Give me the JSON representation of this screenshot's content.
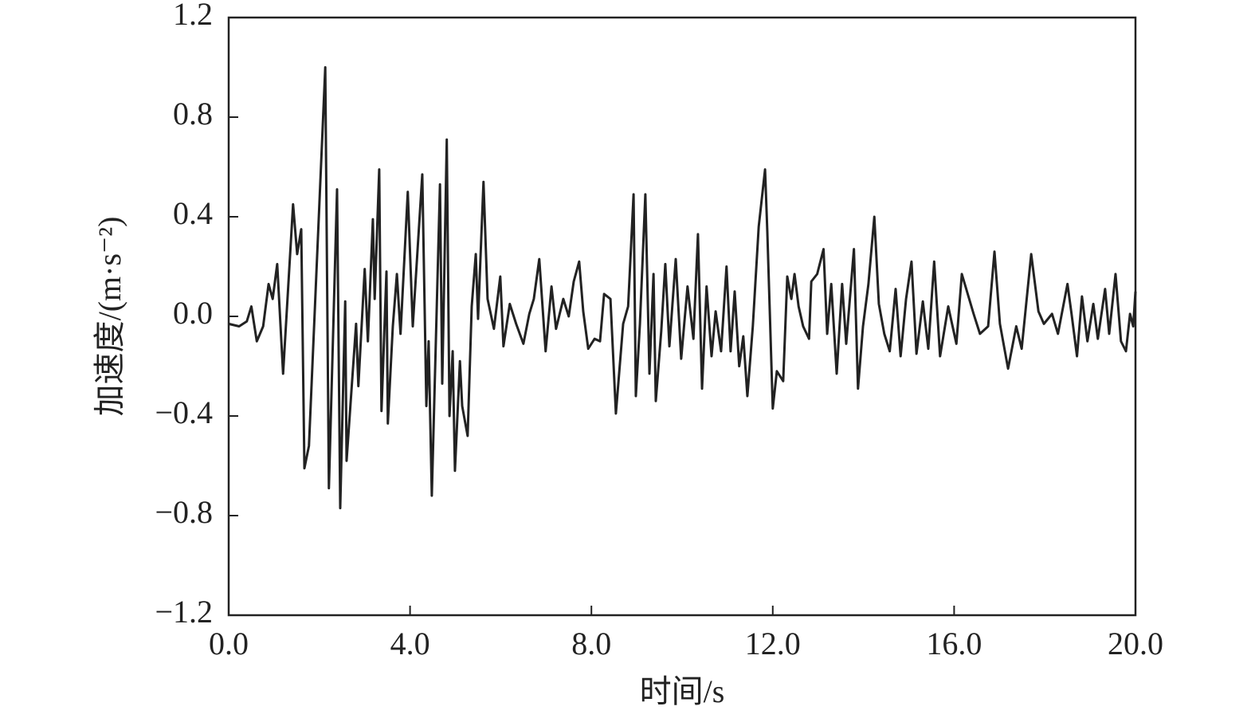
{
  "chart_data": {
    "type": "line",
    "x_label": "时间/s",
    "y_label": "加速度/(m·s⁻²)",
    "xlim": [
      0,
      20
    ],
    "ylim": [
      -1.2,
      1.2
    ],
    "xticks": [
      {
        "value": 0,
        "label": "0.0"
      },
      {
        "value": 4,
        "label": "4.0"
      },
      {
        "value": 8,
        "label": "8.0"
      },
      {
        "value": 12,
        "label": "12.0"
      },
      {
        "value": 16,
        "label": "16.0"
      },
      {
        "value": 20,
        "label": "20.0"
      }
    ],
    "yticks": [
      {
        "value": -1.2,
        "label": "−1.2"
      },
      {
        "value": -0.8,
        "label": "−0.8"
      },
      {
        "value": -0.4,
        "label": "−0.4"
      },
      {
        "value": 0,
        "label": "0.0"
      },
      {
        "value": 0.4,
        "label": "0.4"
      },
      {
        "value": 0.8,
        "label": "0.8"
      },
      {
        "value": 1.2,
        "label": "1.2"
      }
    ],
    "x": [
      0,
      0.23,
      0.4,
      0.5,
      0.62,
      0.76,
      0.88,
      0.97,
      1.07,
      1.2,
      1.42,
      1.51,
      1.6,
      1.67,
      1.77,
      2.13,
      2.21,
      2.39,
      2.46,
      2.57,
      2.6,
      2.81,
      2.86,
      3.0,
      3.07,
      3.18,
      3.22,
      3.32,
      3.37,
      3.48,
      3.51,
      3.62,
      3.71,
      3.79,
      3.95,
      4.06,
      4.27,
      4.36,
      4.41,
      4.48,
      4.66,
      4.71,
      4.81,
      4.87,
      4.94,
      4.99,
      5.1,
      5.15,
      5.27,
      5.36,
      5.45,
      5.5,
      5.62,
      5.71,
      5.85,
      5.99,
      6.06,
      6.2,
      6.34,
      6.5,
      6.63,
      6.73,
      6.85,
      6.99,
      7.12,
      7.22,
      7.38,
      7.5,
      7.61,
      7.73,
      7.82,
      7.93,
      8.07,
      8.19,
      8.28,
      8.42,
      8.54,
      8.7,
      8.81,
      8.93,
      8.98,
      9.07,
      9.19,
      9.28,
      9.37,
      9.42,
      9.54,
      9.63,
      9.72,
      9.86,
      9.98,
      10.12,
      10.25,
      10.35,
      10.44,
      10.54,
      10.65,
      10.74,
      10.86,
      10.98,
      11.07,
      11.16,
      11.26,
      11.35,
      11.44,
      11.56,
      11.69,
      11.83,
      11.88,
      12.0,
      12.09,
      12.23,
      12.32,
      12.41,
      12.48,
      12.57,
      12.67,
      12.8,
      12.85,
      12.98,
      13.12,
      13.2,
      13.29,
      13.41,
      13.53,
      13.62,
      13.79,
      13.88,
      13.99,
      14.11,
      14.24,
      14.34,
      14.46,
      14.58,
      14.71,
      14.82,
      14.94,
      15.06,
      15.17,
      15.31,
      15.43,
      15.56,
      15.69,
      15.87,
      16.05,
      16.17,
      16.3,
      16.43,
      16.57,
      16.75,
      16.89,
      17.01,
      17.19,
      17.37,
      17.49,
      17.7,
      17.86,
      17.98,
      18.16,
      18.29,
      18.5,
      18.59,
      18.71,
      18.82,
      18.94,
      19.07,
      19.17,
      19.33,
      19.42,
      19.56,
      19.68,
      19.79,
      19.88,
      19.95,
      20
    ],
    "series": [
      {
        "color": "#222222",
        "values": [
          -0.03,
          -0.04,
          -0.02,
          0.04,
          -0.1,
          -0.04,
          0.13,
          0.07,
          0.21,
          -0.23,
          0.45,
          0.25,
          0.35,
          -0.61,
          -0.52,
          1.0,
          -0.69,
          0.51,
          -0.77,
          0.06,
          -0.58,
          -0.03,
          -0.28,
          0.19,
          -0.1,
          0.39,
          0.07,
          0.59,
          -0.38,
          0.18,
          -0.43,
          -0.04,
          0.17,
          -0.07,
          0.5,
          -0.04,
          0.57,
          -0.36,
          -0.1,
          -0.72,
          0.53,
          -0.27,
          0.71,
          -0.4,
          -0.14,
          -0.62,
          -0.18,
          -0.36,
          -0.48,
          0.04,
          0.25,
          -0.01,
          0.54,
          0.07,
          -0.05,
          0.16,
          -0.12,
          0.05,
          -0.03,
          -0.11,
          0.01,
          0.07,
          0.23,
          -0.14,
          0.12,
          -0.05,
          0.07,
          0,
          0.14,
          0.22,
          0.02,
          -0.13,
          -0.09,
          -0.1,
          0.09,
          0.07,
          -0.39,
          -0.03,
          0.04,
          0.49,
          -0.32,
          -0.03,
          0.49,
          -0.23,
          0.17,
          -0.34,
          -0.06,
          0.21,
          -0.12,
          0.23,
          -0.17,
          0.12,
          -0.09,
          0.33,
          -0.29,
          0.12,
          -0.16,
          0.02,
          -0.14,
          0.2,
          -0.14,
          0.1,
          -0.2,
          -0.08,
          -0.32,
          -0.04,
          0.36,
          0.59,
          0.34,
          -0.37,
          -0.22,
          -0.26,
          0.16,
          0.07,
          0.17,
          0.04,
          -0.04,
          -0.09,
          0.14,
          0.17,
          0.27,
          -0.07,
          0.13,
          -0.23,
          0.13,
          -0.11,
          0.27,
          -0.29,
          -0.04,
          0.13,
          0.4,
          0.05,
          -0.07,
          -0.14,
          0.11,
          -0.16,
          0.07,
          0.22,
          -0.15,
          0.06,
          -0.13,
          0.22,
          -0.16,
          0.04,
          -0.11,
          0.17,
          0.09,
          0.01,
          -0.07,
          -0.04,
          0.26,
          -0.03,
          -0.21,
          -0.04,
          -0.13,
          0.25,
          0.02,
          -0.03,
          0.01,
          -0.07,
          0.13,
          0.01,
          -0.16,
          0.08,
          -0.1,
          0.05,
          -0.09,
          0.11,
          -0.07,
          0.17,
          -0.1,
          -0.14,
          0.01,
          -0.04,
          0.1
        ]
      }
    ]
  }
}
